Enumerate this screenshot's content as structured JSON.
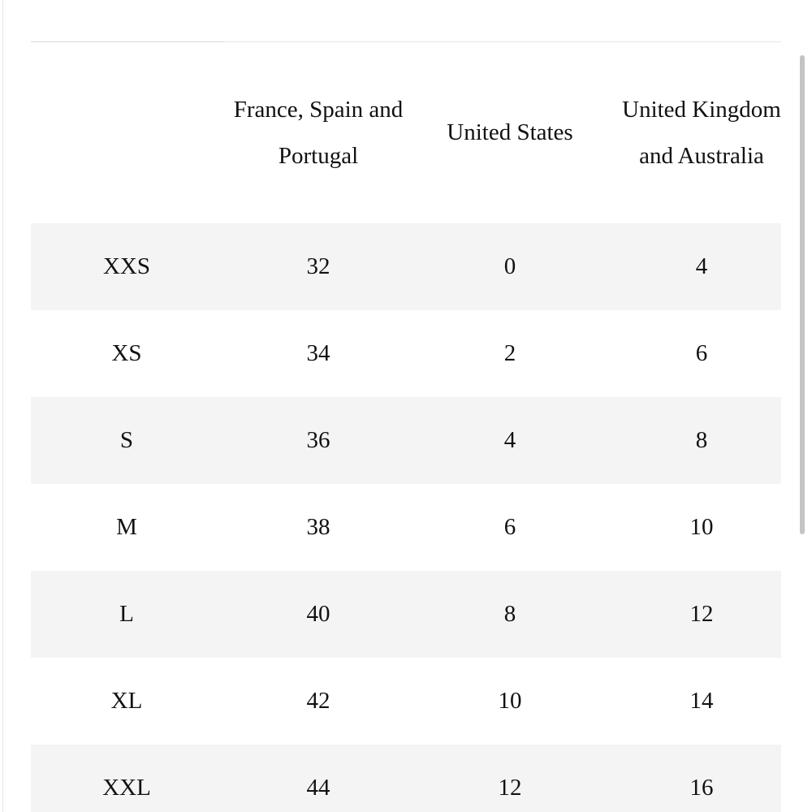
{
  "table": {
    "header": [
      "France, Spain and Portugal",
      "United States",
      "United Kingdom and Australia"
    ],
    "rows": [
      [
        "XXS",
        32,
        0,
        4
      ],
      [
        "XS",
        34,
        2,
        6
      ],
      [
        "S",
        36,
        4,
        8
      ],
      [
        "M",
        38,
        6,
        10
      ],
      [
        "L",
        40,
        8,
        12
      ],
      [
        "XL",
        42,
        10,
        14
      ],
      [
        "XXL",
        44,
        12,
        16
      ]
    ]
  }
}
